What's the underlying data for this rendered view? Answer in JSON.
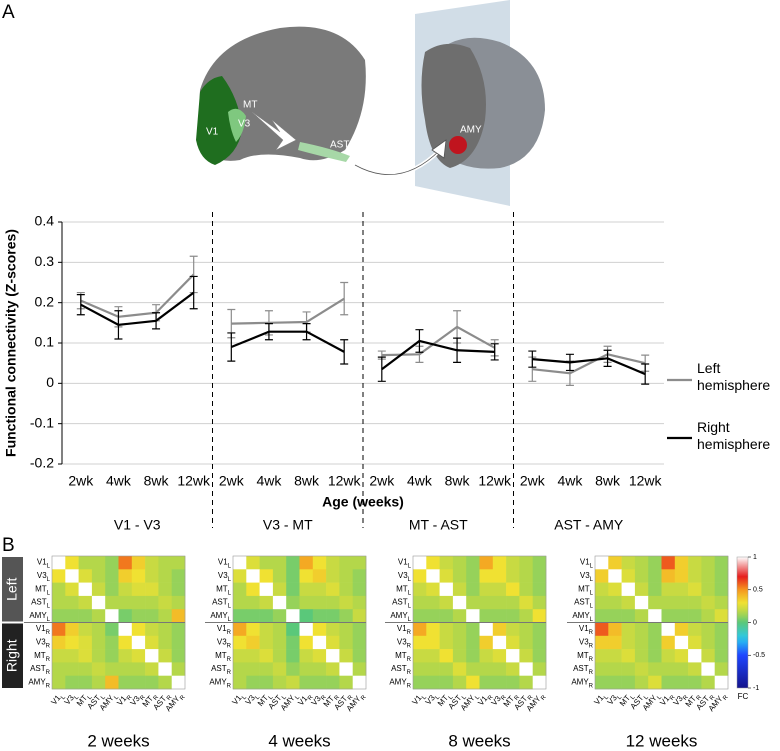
{
  "panel_labels": [
    "A",
    "B"
  ],
  "brain_labels": [
    "V1",
    "V3",
    "MT",
    "AST",
    "AMY"
  ],
  "chart_data": [
    {
      "type": "line",
      "y_label": "Functional connectivity (Z-scores)",
      "x_label": "Age (weeks)",
      "categories": [
        "2wk",
        "4wk",
        "8wk",
        "12wk",
        "2wk",
        "4wk",
        "8wk",
        "12wk",
        "2wk",
        "4wk",
        "8wk",
        "12wk",
        "2wk",
        "4wk",
        "8wk",
        "12wk"
      ],
      "groups": [
        "V1 - V3",
        "V3 - MT",
        "MT - AST",
        "AST - AMY"
      ],
      "ylim": [
        -0.2,
        0.4
      ],
      "yticks": [
        -0.2,
        -0.1,
        0,
        0.1,
        0.2,
        0.3,
        0.4
      ],
      "grid": true,
      "series": [
        {
          "name": "Left hemisphere",
          "color": "#8c8c8c",
          "values": [
            0.205,
            0.165,
            0.175,
            0.27,
            0.148,
            0.15,
            0.152,
            0.21,
            0.07,
            0.072,
            0.14,
            0.088,
            0.035,
            0.025,
            0.072,
            0.05
          ],
          "errors": [
            0.02,
            0.025,
            0.02,
            0.045,
            0.035,
            0.03,
            0.025,
            0.04,
            0.01,
            0.02,
            0.04,
            0.02,
            0.03,
            0.03,
            0.02,
            0.02
          ]
        },
        {
          "name": "Right hemisphere",
          "color": "#000000",
          "values": [
            0.195,
            0.145,
            0.155,
            0.225,
            0.09,
            0.128,
            0.128,
            0.078,
            0.035,
            0.105,
            0.082,
            0.078,
            0.06,
            0.052,
            0.062,
            0.023
          ],
          "errors": [
            0.025,
            0.035,
            0.02,
            0.04,
            0.035,
            0.02,
            0.02,
            0.03,
            0.03,
            0.028,
            0.03,
            0.02,
            0.02,
            0.02,
            0.02,
            0.025
          ]
        }
      ]
    },
    {
      "type": "heatmap",
      "labels": [
        {
          "name": "V1",
          "sub": "L"
        },
        {
          "name": "V3",
          "sub": "L"
        },
        {
          "name": "MT",
          "sub": "L"
        },
        {
          "name": "AST",
          "sub": "L"
        },
        {
          "name": "AMY",
          "sub": "L"
        },
        {
          "name": "V1",
          "sub": "R"
        },
        {
          "name": "V3",
          "sub": "R"
        },
        {
          "name": "MT",
          "sub": "R"
        },
        {
          "name": "AST",
          "sub": "R"
        },
        {
          "name": "AMY",
          "sub": "R"
        }
      ],
      "side_labels": [
        "Left",
        "Right"
      ],
      "colorbar": {
        "label": "FC",
        "lim": [
          -1,
          1
        ],
        "ticks": [
          1,
          0.5,
          0,
          -0.5,
          -1
        ]
      },
      "panels": [
        {
          "title": "2 weeks",
          "matrix": [
            [
              1,
              0.3,
              0.15,
              0.15,
              0.1,
              0.55,
              0.35,
              0.2,
              0.15,
              0.15
            ],
            [
              0.3,
              1,
              0.25,
              0.15,
              0.1,
              0.35,
              0.3,
              0.2,
              0.15,
              0.1
            ],
            [
              0.15,
              0.25,
              1,
              0.2,
              0.1,
              0.2,
              0.25,
              0.25,
              0.15,
              0.1
            ],
            [
              0.15,
              0.15,
              0.2,
              1,
              0.15,
              0.15,
              0.15,
              0.15,
              0.2,
              0.15
            ],
            [
              0.1,
              0.1,
              0.1,
              0.15,
              1,
              0.05,
              0.1,
              0.1,
              0.15,
              0.4
            ],
            [
              0.55,
              0.35,
              0.2,
              0.15,
              0.05,
              1,
              0.3,
              0.2,
              0.15,
              0.1
            ],
            [
              0.35,
              0.3,
              0.25,
              0.15,
              0.1,
              0.3,
              1,
              0.25,
              0.15,
              0.1
            ],
            [
              0.2,
              0.2,
              0.25,
              0.15,
              0.1,
              0.2,
              0.25,
              1,
              0.2,
              0.1
            ],
            [
              0.15,
              0.15,
              0.15,
              0.2,
              0.15,
              0.15,
              0.15,
              0.2,
              1,
              0.15
            ],
            [
              0.15,
              0.1,
              0.1,
              0.15,
              0.4,
              0.1,
              0.1,
              0.1,
              0.15,
              1
            ]
          ]
        },
        {
          "title": "4 weeks",
          "matrix": [
            [
              1,
              0.25,
              0.15,
              0.15,
              0.05,
              0.45,
              0.3,
              0.2,
              0.15,
              0.15
            ],
            [
              0.25,
              1,
              0.3,
              0.15,
              0.05,
              0.3,
              0.35,
              0.2,
              0.15,
              0.1
            ],
            [
              0.15,
              0.3,
              1,
              0.2,
              0.05,
              0.2,
              0.2,
              0.25,
              0.15,
              0.1
            ],
            [
              0.15,
              0.15,
              0.2,
              1,
              0.1,
              0.15,
              0.15,
              0.15,
              0.2,
              0.15
            ],
            [
              0.05,
              0.05,
              0.05,
              0.1,
              1,
              0,
              0.05,
              0.05,
              0.1,
              0.2
            ],
            [
              0.45,
              0.3,
              0.2,
              0.15,
              0,
              1,
              0.3,
              0.2,
              0.15,
              0.1
            ],
            [
              0.3,
              0.35,
              0.2,
              0.15,
              0.05,
              0.3,
              1,
              0.25,
              0.15,
              0.1
            ],
            [
              0.2,
              0.2,
              0.25,
              0.15,
              0.05,
              0.2,
              0.25,
              1,
              0.2,
              0.1
            ],
            [
              0.15,
              0.15,
              0.15,
              0.2,
              0.1,
              0.15,
              0.15,
              0.2,
              1,
              0.15
            ],
            [
              0.15,
              0.1,
              0.1,
              0.15,
              0.2,
              0.1,
              0.1,
              0.1,
              0.15,
              1
            ]
          ]
        },
        {
          "title": "8 weeks",
          "matrix": [
            [
              1,
              0.3,
              0.2,
              0.15,
              0.1,
              0.45,
              0.3,
              0.2,
              0.15,
              0.1
            ],
            [
              0.3,
              1,
              0.25,
              0.15,
              0.1,
              0.3,
              0.3,
              0.2,
              0.15,
              0.1
            ],
            [
              0.2,
              0.25,
              1,
              0.2,
              0.1,
              0.2,
              0.2,
              0.3,
              0.15,
              0.1
            ],
            [
              0.15,
              0.15,
              0.2,
              1,
              0.15,
              0.15,
              0.15,
              0.15,
              0.25,
              0.15
            ],
            [
              0.1,
              0.1,
              0.1,
              0.15,
              1,
              0.1,
              0.1,
              0.1,
              0.15,
              0.3
            ],
            [
              0.45,
              0.3,
              0.2,
              0.15,
              0.1,
              1,
              0.35,
              0.2,
              0.15,
              0.1
            ],
            [
              0.3,
              0.3,
              0.2,
              0.15,
              0.1,
              0.35,
              1,
              0.25,
              0.15,
              0.1
            ],
            [
              0.2,
              0.2,
              0.3,
              0.15,
              0.1,
              0.2,
              0.25,
              1,
              0.2,
              0.1
            ],
            [
              0.15,
              0.15,
              0.15,
              0.25,
              0.15,
              0.15,
              0.15,
              0.2,
              1,
              0.15
            ],
            [
              0.1,
              0.1,
              0.1,
              0.15,
              0.3,
              0.1,
              0.1,
              0.1,
              0.15,
              1
            ]
          ]
        },
        {
          "title": "12 weeks",
          "matrix": [
            [
              1,
              0.35,
              0.2,
              0.15,
              0.1,
              0.6,
              0.35,
              0.2,
              0.15,
              0.1
            ],
            [
              0.35,
              1,
              0.25,
              0.15,
              0.1,
              0.4,
              0.35,
              0.2,
              0.15,
              0.1
            ],
            [
              0.2,
              0.25,
              1,
              0.2,
              0.1,
              0.2,
              0.2,
              0.25,
              0.15,
              0.1
            ],
            [
              0.15,
              0.15,
              0.2,
              1,
              0.15,
              0.15,
              0.15,
              0.15,
              0.2,
              0.15
            ],
            [
              0.1,
              0.1,
              0.1,
              0.15,
              1,
              0.1,
              0.1,
              0.1,
              0.15,
              0.25
            ],
            [
              0.6,
              0.4,
              0.2,
              0.15,
              0.1,
              1,
              0.35,
              0.2,
              0.15,
              0.1
            ],
            [
              0.35,
              0.35,
              0.2,
              0.15,
              0.1,
              0.35,
              1,
              0.25,
              0.15,
              0.1
            ],
            [
              0.2,
              0.2,
              0.25,
              0.15,
              0.1,
              0.2,
              0.25,
              1,
              0.2,
              0.1
            ],
            [
              0.15,
              0.15,
              0.15,
              0.2,
              0.15,
              0.15,
              0.15,
              0.2,
              1,
              0.15
            ],
            [
              0.1,
              0.1,
              0.1,
              0.15,
              0.25,
              0.1,
              0.1,
              0.1,
              0.15,
              1
            ]
          ]
        }
      ]
    }
  ]
}
